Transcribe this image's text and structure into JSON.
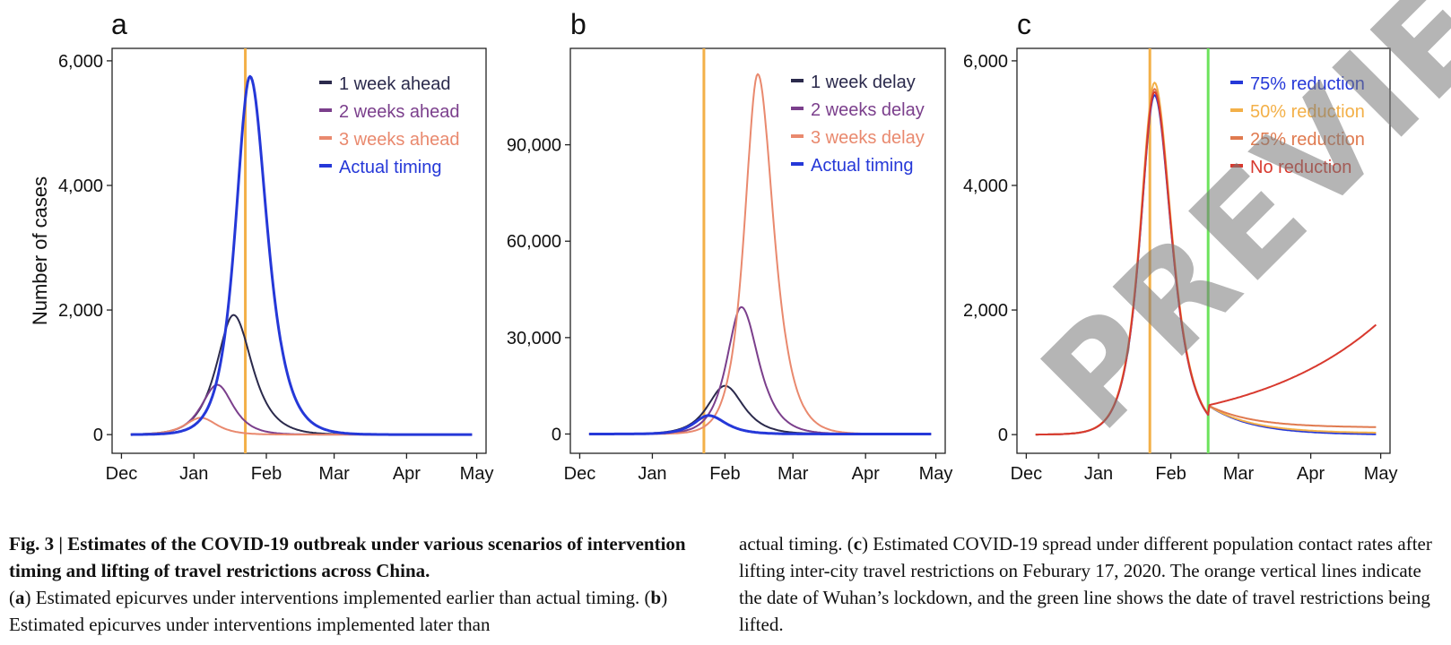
{
  "figure": {
    "panels": [
      {
        "letter": "a"
      },
      {
        "letter": "b"
      },
      {
        "letter": "c"
      }
    ],
    "shared_ylabel": "Number of cases"
  },
  "chart_data": [
    {
      "type": "line",
      "panel": "a",
      "ylabel": "Number of cases",
      "x_ticks": [
        "Dec",
        "Jan",
        "Feb",
        "Mar",
        "Apr",
        "May"
      ],
      "x_tick_days": [
        0,
        31,
        62,
        91,
        122,
        152
      ],
      "xlim": [
        0,
        152
      ],
      "ylim": [
        -300,
        6200
      ],
      "y_ticks": [
        0,
        2000,
        4000,
        6000
      ],
      "y_tick_labels": [
        "0",
        "2,000",
        "4,000",
        "6,000"
      ],
      "vlines": [
        {
          "day": 53,
          "color": "#f3b048",
          "label": "Wuhan lockdown"
        }
      ],
      "series": [
        {
          "name": "1 week ahead",
          "color": "#2b2a4c",
          "peak_day": 48,
          "peak": 1920,
          "rise": 6.5,
          "fall": 7
        },
        {
          "name": "2 weeks ahead",
          "color": "#7b3f8c",
          "peak_day": 41,
          "peak": 800,
          "rise": 6,
          "fall": 6
        },
        {
          "name": "3 weeks ahead",
          "color": "#e9896e",
          "peak_day": 34,
          "peak": 270,
          "rise": 6,
          "fall": 6
        },
        {
          "name": "Actual timing",
          "color": "#2538d8",
          "peak_day": 55,
          "peak": 5750,
          "rise": 5.5,
          "fall": 6.5
        }
      ]
    },
    {
      "type": "line",
      "panel": "b",
      "x_ticks": [
        "Dec",
        "Jan",
        "Feb",
        "Mar",
        "Apr",
        "May"
      ],
      "x_tick_days": [
        0,
        31,
        62,
        91,
        122,
        152
      ],
      "xlim": [
        0,
        152
      ],
      "ylim": [
        -6000,
        120000
      ],
      "y_ticks": [
        0,
        30000,
        60000,
        90000
      ],
      "y_tick_labels": [
        "0",
        "30,000",
        "60,000",
        "90,000"
      ],
      "vlines": [
        {
          "day": 53,
          "color": "#f3b048",
          "label": "Wuhan lockdown"
        }
      ],
      "series": [
        {
          "name": "1 week delay",
          "color": "#2b2a4c",
          "peak_day": 62,
          "peak": 15000,
          "rise": 6.5,
          "fall": 7
        },
        {
          "name": "2 weeks delay",
          "color": "#7b3f8c",
          "peak_day": 69,
          "peak": 39500,
          "rise": 5.5,
          "fall": 6.5
        },
        {
          "name": "3 weeks delay",
          "color": "#e9896e",
          "peak_day": 76,
          "peak": 112000,
          "rise": 5,
          "fall": 6
        },
        {
          "name": "Actual timing",
          "color": "#2538d8",
          "peak_day": 55,
          "peak": 5750,
          "rise": 5.5,
          "fall": 6.5
        }
      ]
    },
    {
      "type": "line",
      "panel": "c",
      "x_ticks": [
        "Dec",
        "Jan",
        "Feb",
        "Mar",
        "Apr",
        "May"
      ],
      "x_tick_days": [
        0,
        31,
        62,
        91,
        122,
        152
      ],
      "xlim": [
        0,
        152
      ],
      "ylim": [
        -300,
        6200
      ],
      "y_ticks": [
        0,
        2000,
        4000,
        6000
      ],
      "y_tick_labels": [
        "0",
        "2,000",
        "4,000",
        "6,000"
      ],
      "vlines": [
        {
          "day": 53,
          "color": "#f3b048",
          "label": "Wuhan lockdown"
        },
        {
          "day": 78,
          "color": "#6de35c",
          "label": "travel restrictions lifted"
        }
      ],
      "lift_day": 78,
      "series": [
        {
          "name": "75% reduction",
          "color": "#2538d8",
          "peak_day": 55,
          "peak": 5450,
          "rise": 5.5,
          "fall": 6.5,
          "tail_start": 470,
          "tail_end": 5
        },
        {
          "name": "50% reduction",
          "color": "#f3b048",
          "peak_day": 55,
          "peak": 5650,
          "rise": 5.5,
          "fall": 6.5,
          "tail_start": 470,
          "tail_end": 30
        },
        {
          "name": "25% reduction",
          "color": "#e07a4f",
          "peak_day": 55,
          "peak": 5550,
          "rise": 5.5,
          "fall": 6.5,
          "tail_start": 470,
          "tail_end": 120
        },
        {
          "name": "No reduction",
          "color": "#d8392e",
          "peak_day": 55,
          "peak": 5500,
          "rise": 5.5,
          "fall": 6.5,
          "tail_start": 470,
          "tail_end": 1830
        }
      ]
    }
  ],
  "caption": {
    "fig_label": "Fig. 3 | ",
    "title": "Estimates of the COVID-19 outbreak under various scenarios of intervention timing and lifting of travel restrictions across China.",
    "a_open": "(",
    "a_letter": "a",
    "a_text": ") Estimated epicurves under interventions implemented earlier than actual timing. (",
    "b_letter": "b",
    "b_text": ") Estimated epicurves under interventions implemented later than",
    "right_start": "actual timing. (",
    "c_letter": "c",
    "c_text": ") Estimated COVID-19 spread under different population contact rates after lifting inter-city travel restrictions on Feburary 17, 2020. The orange vertical lines indicate the date of Wuhan’s lockdown, and the green line shows the date of travel restrictions being lifted."
  },
  "watermark": "PREVIEW"
}
